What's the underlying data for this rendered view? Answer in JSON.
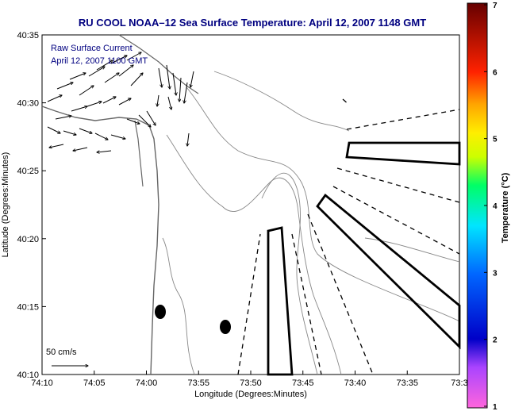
{
  "chart_data": {
    "type": "map",
    "title": "RU COOL  NOAA–12  Sea Surface Temperature:  April 12, 2007 1148 GMT",
    "xlabel": "Longitude (Degrees:Minutes)",
    "ylabel": "Latitude (Degrees:Minutes)",
    "x_ticks": [
      "74:10",
      "74:05",
      "74:00",
      "73:55",
      "73:50",
      "73:45",
      "73:40",
      "73:35",
      "73:3"
    ],
    "y_ticks": [
      "40:35",
      "40:30",
      "40:25",
      "40:20",
      "40:15",
      "40:10"
    ],
    "xlim_minutes_west": [
      70,
      30
    ],
    "ylim_minutes_north": [
      10,
      35
    ],
    "colorbar": {
      "label": "Temperature (°C)",
      "range": [
        1,
        7
      ],
      "ticks": [
        "7",
        "6",
        "5",
        "4",
        "3",
        "2",
        "1"
      ]
    },
    "annotations": {
      "legend_line1": "Raw Surface Current",
      "legend_line2": "April 12, 2007 1100 GMT",
      "scale_label": "50 cm/s"
    },
    "grid": false,
    "colors": {
      "title": "#000080",
      "annotation": "#000080",
      "contour": "#888888",
      "axes": "#000000"
    }
  }
}
